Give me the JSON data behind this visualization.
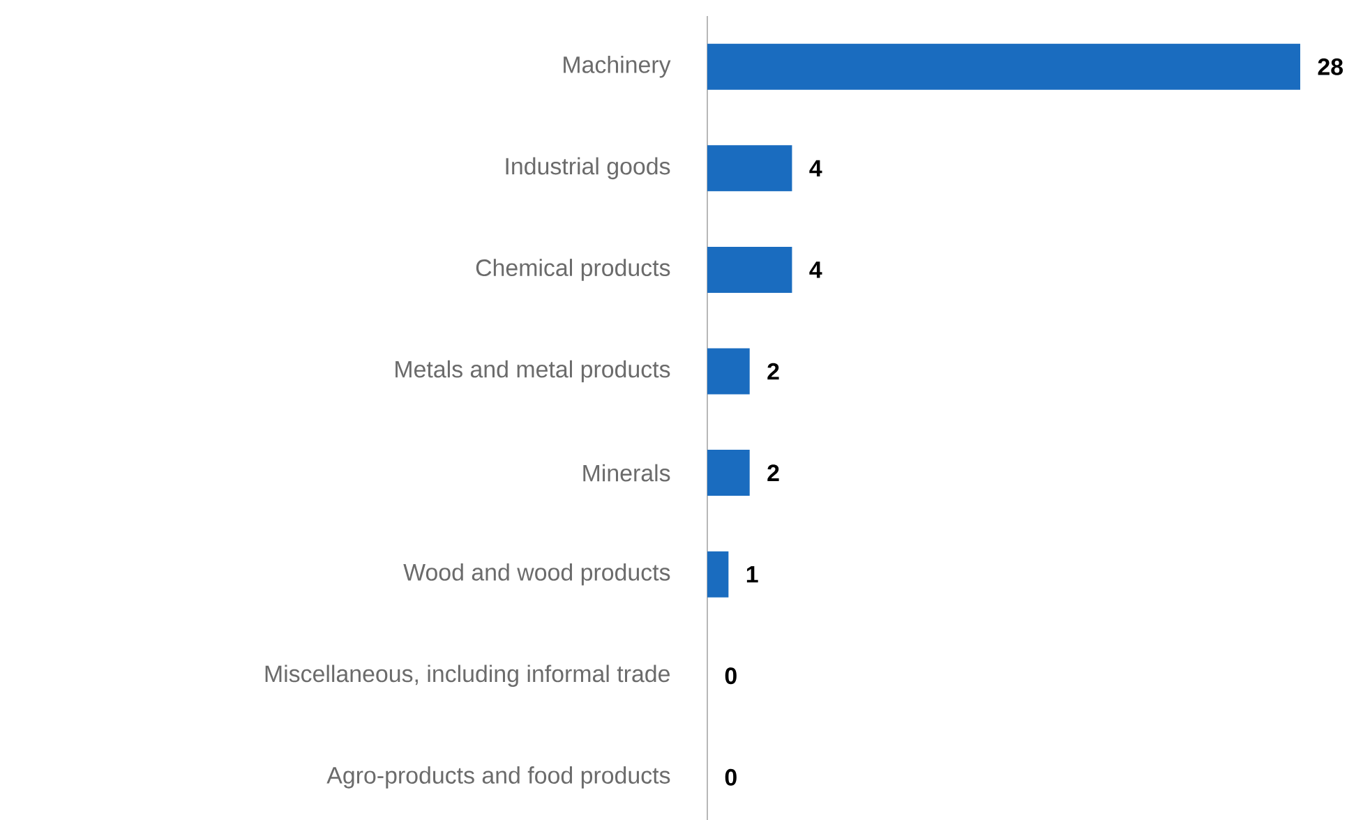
{
  "chart_data": {
    "type": "bar",
    "orientation": "horizontal",
    "categories": [
      "Machinery",
      "Industrial goods",
      "Chemical products",
      "Metals and metal products",
      "Minerals",
      "Wood and wood products",
      "Miscellaneous, including informal trade",
      "Agro-products and food products"
    ],
    "values": [
      28,
      4,
      4,
      2,
      2,
      1,
      0,
      0
    ],
    "color": "#1a6cbf",
    "data_labels": true,
    "xlim": [
      0,
      28
    ],
    "tick_labels": "y"
  }
}
